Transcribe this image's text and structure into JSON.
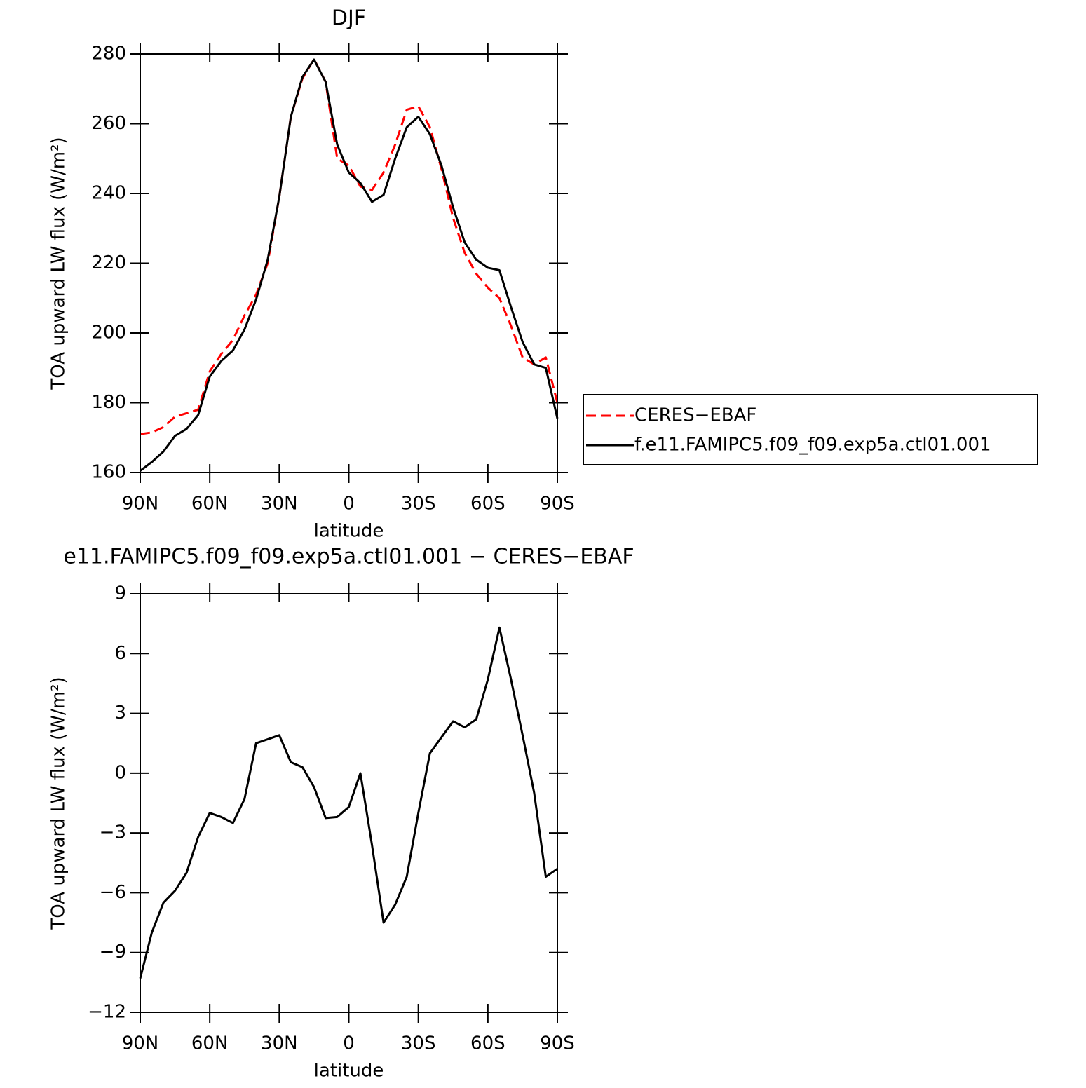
{
  "chart_data": [
    {
      "type": "line",
      "title": "DJF",
      "xlabel": "latitude",
      "ylabel": "TOA upward LW flux (W/m²)",
      "x": [
        90,
        85,
        80,
        75,
        70,
        65,
        60,
        55,
        50,
        45,
        40,
        35,
        30,
        25,
        20,
        15,
        10,
        5,
        0,
        -5,
        -10,
        -15,
        -20,
        -25,
        -30,
        -35,
        -40,
        -45,
        -50,
        -55,
        -60,
        -65,
        -70,
        -75,
        -80,
        -85,
        -90
      ],
      "series": [
        {
          "name": "CERES−EBAF",
          "color": "#ff0000",
          "linestyle": "dashed",
          "values": [
            171,
            171.5,
            173,
            176,
            177,
            178,
            189,
            194,
            198,
            205,
            211,
            220,
            239,
            262,
            273,
            278.5,
            272,
            250,
            248,
            242,
            241,
            246,
            254,
            264,
            265,
            259,
            247,
            233,
            223,
            217,
            213,
            210,
            202,
            193,
            191,
            193,
            180
          ]
        },
        {
          "name": "f.e11.FAMIPC5.f09_f09.exp5a.ctl01.001",
          "color": "#000000",
          "linestyle": "solid",
          "values": [
            160.5,
            163,
            166,
            170.5,
            172.5,
            176.5,
            187.5,
            192,
            195,
            201,
            209.6,
            221,
            239,
            262,
            273.4,
            278.4,
            272,
            254,
            246,
            243,
            237.6,
            239.6,
            250,
            259,
            262,
            257,
            248,
            236,
            226,
            221,
            218.7,
            218,
            207.4,
            197.4,
            191,
            190,
            175.5
          ]
        }
      ],
      "xlim": [
        90,
        -90
      ],
      "xticks": [
        {
          "value": 90,
          "label": "90N"
        },
        {
          "value": 60,
          "label": "60N"
        },
        {
          "value": 30,
          "label": "30N"
        },
        0,
        {
          "value": -30,
          "label": "30S"
        },
        {
          "value": -60,
          "label": "60S"
        },
        {
          "value": -90,
          "label": "90S"
        }
      ],
      "ylim": [
        160,
        280
      ],
      "yticks": [
        160,
        180,
        200,
        220,
        240,
        260,
        280
      ],
      "legend": "right"
    },
    {
      "type": "line",
      "title": "e11.FAMIPC5.f09_f09.exp5a.ctl01.001 − CERES−EBAF",
      "xlabel": "latitude",
      "ylabel": "TOA upward LW flux (W/m²)",
      "x": [
        90,
        85,
        80,
        75,
        70,
        65,
        60,
        55,
        50,
        45,
        40,
        35,
        30,
        25,
        20,
        15,
        10,
        5,
        0,
        -5,
        -10,
        -15,
        -20,
        -25,
        -30,
        -35,
        -40,
        -45,
        -50,
        -55,
        -60,
        -65,
        -70,
        -75,
        -80,
        -85,
        -90
      ],
      "series": [
        {
          "color": "#000000",
          "linestyle": "solid",
          "values": [
            -10.3,
            -8.0,
            -6.5,
            -5.9,
            -5.0,
            -3.2,
            -2.0,
            -2.2,
            -2.5,
            -1.3,
            1.5,
            1.7,
            1.9,
            0.55,
            0.3,
            -0.7,
            -2.25,
            -2.2,
            -1.7,
            0,
            -3.6,
            -7.5,
            -6.6,
            -5.2,
            -2.0,
            1.0,
            1.8,
            2.6,
            2.3,
            2.7,
            4.7,
            7.3,
            4.7,
            1.9,
            -1.0,
            -5.2,
            -4.8
          ]
        }
      ],
      "xlim": [
        90,
        -90
      ],
      "xticks": [
        {
          "value": 90,
          "label": "90N"
        },
        {
          "value": 60,
          "label": "60N"
        },
        {
          "value": 30,
          "label": "30N"
        },
        0,
        {
          "value": -30,
          "label": "30S"
        },
        {
          "value": -60,
          "label": "60S"
        },
        {
          "value": -90,
          "label": "90S"
        }
      ],
      "ylim": [
        -12,
        9
      ],
      "yticks": [
        {
          "value": -12,
          "label": "−12"
        },
        {
          "value": -9,
          "label": "−9"
        },
        {
          "value": -6,
          "label": "−6"
        },
        {
          "value": -3,
          "label": "−3"
        },
        0,
        3,
        6,
        9
      ]
    }
  ]
}
